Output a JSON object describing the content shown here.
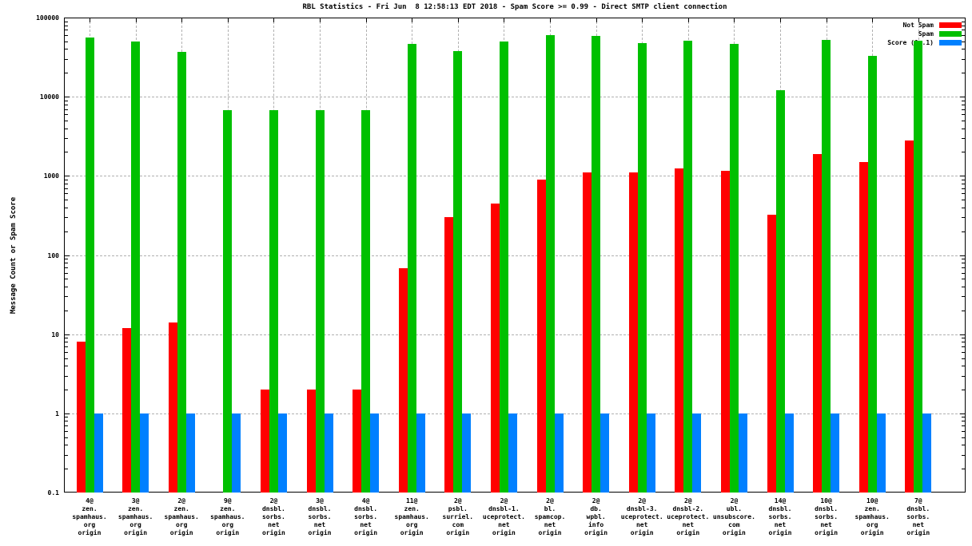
{
  "title": "RBL Statistics - Fri Jun  8 12:58:13 EDT 2018 - Spam Score >= 0.99 - Direct SMTP client connection",
  "ylabel": "Message Count or Spam Score",
  "colors": {
    "not_spam": "#ff0000",
    "spam": "#00c000",
    "score": "#0080ff",
    "grid": "#b0b0b0"
  },
  "legend": [
    {
      "label": "Not Spam",
      "color": "#ff0000"
    },
    {
      "label": "Spam",
      "color": "#00c000"
    },
    {
      "label": "Score (0..1)",
      "color": "#0080ff"
    }
  ],
  "chart_data": {
    "type": "bar",
    "y_scale": "log",
    "ylim": [
      0.1,
      100000
    ],
    "y_tick_labels": [
      "100000",
      "10000",
      "1000",
      "100",
      "10",
      "1",
      "0.1"
    ],
    "grid": true,
    "legend_position": "top-right-inside",
    "title": "RBL Statistics - Fri Jun  8 12:58:13 EDT 2018 - Spam Score >= 0.99 - Direct SMTP client connection",
    "xlabel": "",
    "ylabel": "Message Count or Spam Score",
    "categories": [
      "4@\nzen.\nspamhaus.\norg\norigin",
      "3@\nzen.\nspamhaus.\norg\norigin",
      "2@\nzen.\nspamhaus.\norg\norigin",
      "9@\nzen.\nspamhaus.\norg\norigin",
      "2@\ndnsbl.\nsorbs.\nnet\norigin",
      "3@\ndnsbl.\nsorbs.\nnet\norigin",
      "4@\ndnsbl.\nsorbs.\nnet\norigin",
      "11@\nzen.\nspamhaus.\norg\norigin",
      "2@\npsbl.\nsurriel.\ncom\norigin",
      "2@\ndnsbl-1.\nuceprotect.\nnet\norigin",
      "2@\nbl.\nspamcop.\nnet\norigin",
      "2@\ndb.\nwpbl.\ninfo\norigin",
      "2@\ndnsbl-3.\nuceprotect.\nnet\norigin",
      "2@\ndnsbl-2.\nuceprotect.\nnet\norigin",
      "2@\nubl.\nunsubscore.\ncom\norigin",
      "14@\ndnsbl.\nsorbs.\nnet\norigin",
      "10@\ndnsbl.\nsorbs.\nnet\norigin",
      "10@\nzen.\nspamhaus.\norg\norigin",
      "7@\ndnsbl.\nsorbs.\nnet\norigin"
    ],
    "series": [
      {
        "name": "Not Spam",
        "color": "#ff0000",
        "values": [
          8,
          12,
          14,
          null,
          2,
          2,
          2,
          68,
          300,
          450,
          900,
          1100,
          1100,
          1250,
          1150,
          320,
          1900,
          1500,
          2800
        ]
      },
      {
        "name": "Spam",
        "color": "#00c000",
        "values": [
          56000,
          50000,
          37000,
          6700,
          6700,
          6700,
          6700,
          46000,
          38000,
          50000,
          60000,
          59000,
          48000,
          51000,
          46000,
          12000,
          52000,
          33000,
          51000
        ]
      },
      {
        "name": "Score (0..1)",
        "color": "#0080ff",
        "values": [
          1,
          1,
          1,
          1,
          1,
          1,
          1,
          1,
          1,
          1,
          1,
          1,
          1,
          1,
          1,
          1,
          1,
          1,
          1
        ]
      }
    ]
  }
}
